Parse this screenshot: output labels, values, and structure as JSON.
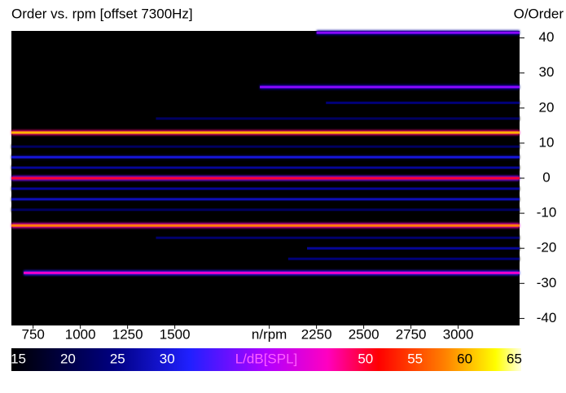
{
  "chart_data": {
    "type": "order-map",
    "title": "Order vs. rpm [offset 7300Hz]",
    "y_label": "O/Order",
    "xlim": [
      635,
      3325
    ],
    "xticks": [
      750,
      1000,
      1250,
      1500,
      {
        "value": 2000,
        "label": "n/rpm"
      },
      2250,
      2500,
      2750,
      3000
    ],
    "ylim": [
      -42,
      42
    ],
    "yticks": [
      40,
      30,
      20,
      10,
      0,
      -10,
      -20,
      -30,
      -40
    ],
    "clim": [
      14.3,
      65.7
    ],
    "cticks": [
      15,
      20,
      25,
      30,
      {
        "value": 40,
        "label": "L/dB[SPL]"
      },
      50,
      55,
      60,
      65
    ],
    "traces": [
      {
        "order": 41.5,
        "level": 38,
        "from": 2250,
        "to": 3325
      },
      {
        "order": 26,
        "level": 38,
        "from": 1950,
        "to": 3325
      },
      {
        "order": 21.5,
        "level": 24,
        "from": 2300,
        "to": 3325
      },
      {
        "order": 17,
        "level": 22,
        "from": 1400,
        "to": 3325
      },
      {
        "order": 13,
        "level": 60,
        "from": 635,
        "to": 3325
      },
      {
        "order": 9,
        "level": 22,
        "from": 635,
        "to": 3325
      },
      {
        "order": 6,
        "level": 30,
        "from": 635,
        "to": 3325
      },
      {
        "order": 3,
        "level": 26,
        "from": 635,
        "to": 3325
      },
      {
        "order": 0,
        "level": 50,
        "from": 635,
        "to": 3325
      },
      {
        "order": -3,
        "level": 26,
        "from": 635,
        "to": 3325
      },
      {
        "order": -6,
        "level": 28,
        "from": 635,
        "to": 3325
      },
      {
        "order": -9,
        "level": 22,
        "from": 635,
        "to": 3325
      },
      {
        "order": -13.5,
        "level": 58,
        "from": 635,
        "to": 3325
      },
      {
        "order": -17,
        "level": 23,
        "from": 1400,
        "to": 3325
      },
      {
        "order": -20,
        "level": 26,
        "from": 2200,
        "to": 3325
      },
      {
        "order": -23,
        "level": 24,
        "from": 2100,
        "to": 3325
      },
      {
        "order": -27,
        "level": 45,
        "from": 700,
        "to": 3325
      }
    ]
  }
}
